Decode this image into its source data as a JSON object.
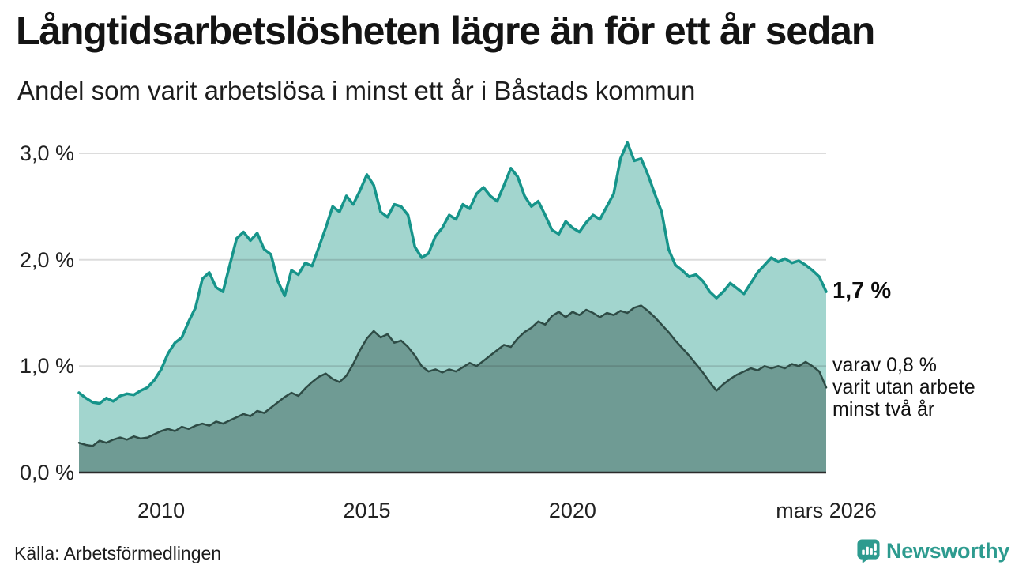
{
  "header": {
    "title": "Långtidsarbetslösheten lägre än för ett år sedan",
    "subtitle": "Andel som varit arbetslösa i minst ett år i Båstads kommun"
  },
  "chart_data": {
    "type": "area",
    "title": "Långtidsarbetslösheten lägre än för ett år sedan",
    "subtitle": "Andel som varit arbetslösa i minst ett år i Båstads kommun",
    "x_unit": "decimal_year",
    "x_start": 2008.0,
    "x_end": 2026.1667,
    "x_step_years": 0.1667,
    "ylim": [
      0,
      3.25
    ],
    "grid": true,
    "legend": "none",
    "yticks": [
      {
        "value": 0,
        "label": "0,0 %"
      },
      {
        "value": 1,
        "label": "1,0 %"
      },
      {
        "value": 2,
        "label": "2,0 %"
      },
      {
        "value": 3,
        "label": "3,0 %"
      }
    ],
    "xticks": [
      {
        "value": 2010,
        "label": "2010"
      },
      {
        "value": 2015,
        "label": "2015"
      },
      {
        "value": 2020,
        "label": "2020"
      },
      {
        "value": 2026.1667,
        "label": "mars 2026"
      }
    ],
    "series": [
      {
        "name": "Arbetslösa minst ett år",
        "line_color": "#16948a",
        "fill_color": "#a2d5ce",
        "end_value_pct": 1.7,
        "values": [
          0.75,
          0.7,
          0.66,
          0.65,
          0.7,
          0.67,
          0.72,
          0.74,
          0.73,
          0.77,
          0.8,
          0.87,
          0.97,
          1.12,
          1.22,
          1.27,
          1.42,
          1.55,
          1.82,
          1.88,
          1.74,
          1.7,
          1.95,
          2.2,
          2.26,
          2.18,
          2.25,
          2.1,
          2.05,
          1.8,
          1.66,
          1.9,
          1.86,
          1.97,
          1.94,
          2.12,
          2.3,
          2.5,
          2.45,
          2.6,
          2.52,
          2.65,
          2.8,
          2.7,
          2.45,
          2.4,
          2.52,
          2.5,
          2.42,
          2.12,
          2.02,
          2.06,
          2.22,
          2.3,
          2.42,
          2.38,
          2.52,
          2.48,
          2.62,
          2.68,
          2.6,
          2.55,
          2.7,
          2.86,
          2.78,
          2.6,
          2.5,
          2.55,
          2.42,
          2.28,
          2.24,
          2.36,
          2.3,
          2.26,
          2.35,
          2.42,
          2.38,
          2.5,
          2.62,
          2.95,
          3.1,
          2.93,
          2.95,
          2.8,
          2.62,
          2.45,
          2.1,
          1.95,
          1.9,
          1.84,
          1.86,
          1.8,
          1.7,
          1.64,
          1.7,
          1.78,
          1.73,
          1.68,
          1.78,
          1.88,
          1.95,
          2.02,
          1.98,
          2.01,
          1.97,
          1.99,
          1.95,
          1.9,
          1.84,
          1.7
        ]
      },
      {
        "name": "Arbetslösa minst två år",
        "line_color": "#2e4b45",
        "fill_color": "#6f9b94",
        "end_value_pct": 0.8,
        "values": [
          0.28,
          0.26,
          0.25,
          0.3,
          0.28,
          0.31,
          0.33,
          0.31,
          0.34,
          0.32,
          0.33,
          0.36,
          0.39,
          0.41,
          0.39,
          0.43,
          0.41,
          0.44,
          0.46,
          0.44,
          0.48,
          0.46,
          0.49,
          0.52,
          0.55,
          0.53,
          0.58,
          0.56,
          0.61,
          0.66,
          0.71,
          0.75,
          0.72,
          0.79,
          0.85,
          0.9,
          0.93,
          0.88,
          0.85,
          0.91,
          1.02,
          1.15,
          1.26,
          1.33,
          1.27,
          1.3,
          1.22,
          1.24,
          1.18,
          1.1,
          1.0,
          0.95,
          0.97,
          0.94,
          0.97,
          0.95,
          0.99,
          1.03,
          1.0,
          1.05,
          1.1,
          1.15,
          1.2,
          1.18,
          1.26,
          1.32,
          1.36,
          1.42,
          1.39,
          1.47,
          1.51,
          1.46,
          1.51,
          1.48,
          1.53,
          1.5,
          1.46,
          1.5,
          1.48,
          1.52,
          1.5,
          1.55,
          1.57,
          1.52,
          1.46,
          1.39,
          1.32,
          1.24,
          1.17,
          1.1,
          1.02,
          0.94,
          0.85,
          0.77,
          0.83,
          0.88,
          0.92,
          0.95,
          0.98,
          0.96,
          1.0,
          0.98,
          1.0,
          0.98,
          1.02,
          1.0,
          1.04,
          1.0,
          0.95,
          0.8
        ]
      }
    ],
    "annotations": {
      "end_label": "1,7 %",
      "note_lines": [
        "varav 0,8 %",
        "varit utan arbete",
        "minst två år"
      ]
    },
    "grid_color": "#d9d9d9",
    "baseline_color": "#2b2b2b"
  },
  "footer": {
    "source": "Källa: Arbetsförmedlingen",
    "brand": "Newsworthy",
    "brand_color": "#2d9b8f"
  }
}
